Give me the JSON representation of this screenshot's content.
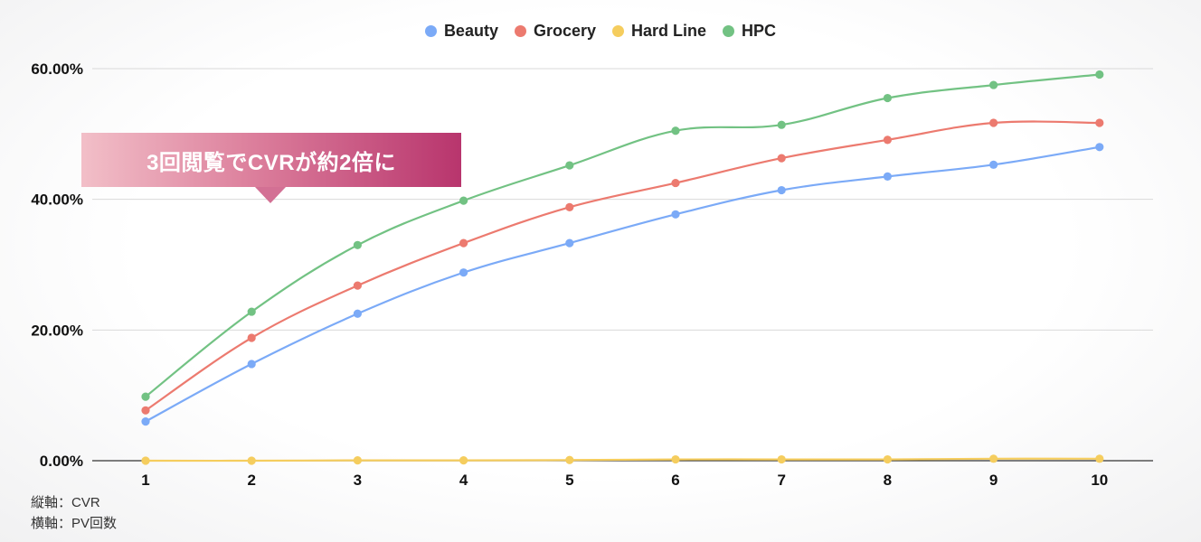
{
  "chart_data": {
    "type": "line",
    "categories": [
      "1",
      "2",
      "3",
      "4",
      "5",
      "6",
      "7",
      "8",
      "9",
      "10"
    ],
    "series": [
      {
        "name": "Beauty",
        "color": "#7BAAF7",
        "values": [
          6.0,
          14.8,
          22.5,
          28.8,
          33.3,
          37.7,
          41.4,
          43.5,
          45.3,
          48.0
        ]
      },
      {
        "name": "Grocery",
        "color": "#EC7A6F",
        "values": [
          7.7,
          18.8,
          26.8,
          33.3,
          38.8,
          42.5,
          46.3,
          49.1,
          51.7,
          51.7
        ]
      },
      {
        "name": "Hard Line",
        "color": "#F5CD5E",
        "values": [
          0.0,
          0.0,
          0.05,
          0.05,
          0.1,
          0.2,
          0.2,
          0.2,
          0.3,
          0.3
        ]
      },
      {
        "name": "HPC",
        "color": "#72C283",
        "values": [
          9.8,
          22.8,
          33.0,
          39.8,
          45.2,
          50.5,
          51.4,
          55.5,
          57.5,
          59.1
        ]
      }
    ],
    "yticks": [
      "0.00%",
      "20.00%",
      "40.00%",
      "60.00%"
    ],
    "ylim": [
      0,
      60
    ],
    "grid": true,
    "legend_position": "top-center"
  },
  "annotation": {
    "text": "3回閲覧でCVRが約2倍に"
  },
  "axis_notes": {
    "vertical": "縦軸：CVR",
    "horizontal": "横軸：PV回数"
  }
}
